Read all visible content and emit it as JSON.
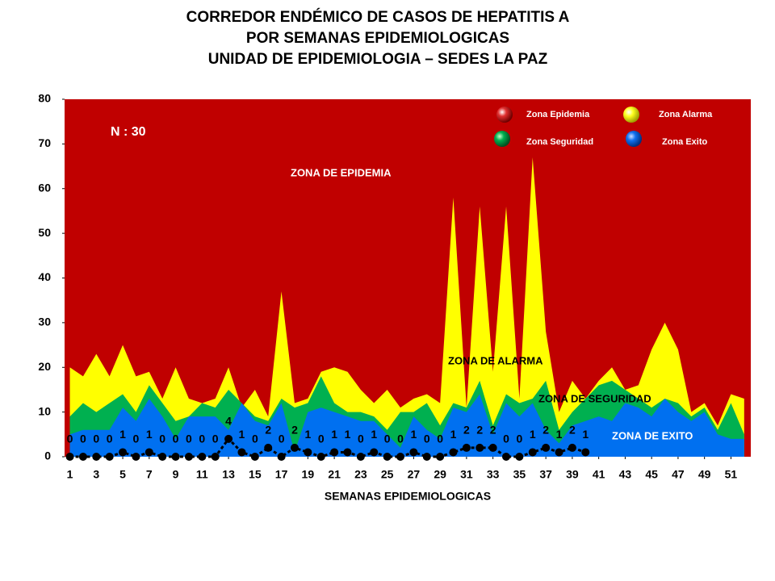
{
  "chart_data": {
    "type": "area",
    "title": [
      "CORREDOR ENDÉMICO DE CASOS DE HEPATITIS A",
      "POR SEMANAS EPIDEMIOLOGICAS",
      "UNIDAD DE EPIDEMIOLOGIA – SEDES LA PAZ"
    ],
    "x_label": "SEMANAS EPIDEMIOLOGICAS",
    "annotations": [
      "N : 30",
      "ZONA DE EPIDEMIA",
      "ZONA DE ALARMA",
      "ZONA DE  SEGURIDAD",
      "ZONA DE  EXITO"
    ],
    "x": [
      1,
      2,
      3,
      4,
      5,
      6,
      7,
      8,
      9,
      10,
      11,
      12,
      13,
      14,
      15,
      16,
      17,
      18,
      19,
      20,
      21,
      22,
      23,
      24,
      25,
      26,
      27,
      28,
      29,
      30,
      31,
      32,
      33,
      34,
      35,
      36,
      37,
      38,
      39,
      40,
      41,
      42,
      43,
      44,
      45,
      46,
      47,
      48,
      49,
      50,
      51,
      52
    ],
    "xlim": [
      0.6,
      52.5
    ],
    "xticks": [
      1,
      3,
      5,
      7,
      9,
      11,
      13,
      15,
      17,
      19,
      21,
      23,
      25,
      27,
      29,
      31,
      33,
      35,
      37,
      39,
      41,
      43,
      45,
      47,
      49,
      51
    ],
    "ylim": [
      0,
      80
    ],
    "yticks": [
      0,
      10,
      20,
      30,
      40,
      50,
      60,
      70,
      80
    ],
    "grid": false,
    "series": [
      {
        "name": "Zona Epidemia",
        "color": "#c00000"
      },
      {
        "name": "Zona Alarma",
        "color": "#ffff00",
        "values": [
          20,
          18,
          23,
          18,
          25,
          18,
          19,
          13,
          20,
          13,
          12,
          13,
          20,
          11,
          15,
          9,
          37,
          12,
          13,
          19,
          20,
          19,
          15,
          12,
          15,
          11,
          13,
          14,
          12,
          58,
          11,
          56,
          19,
          56,
          13,
          67,
          28,
          10,
          17,
          13,
          17,
          20,
          15,
          16,
          24,
          30,
          24,
          10,
          12,
          7,
          14,
          13
        ]
      },
      {
        "name": "Zona Seguridad",
        "color": "#00b050",
        "values": [
          9,
          12,
          10,
          12,
          14,
          10,
          16,
          12,
          8,
          9,
          12,
          11,
          15,
          12,
          9,
          8,
          13,
          11,
          12,
          18,
          12,
          10,
          10,
          9,
          6,
          10,
          10,
          12,
          7,
          12,
          11,
          17,
          7,
          14,
          12,
          13,
          17,
          6,
          10,
          13,
          16,
          17,
          15,
          13,
          11,
          13,
          12,
          9,
          11,
          6,
          12,
          5
        ]
      },
      {
        "name": "Zona Exito",
        "color": "#0070f0",
        "values": [
          5,
          6,
          6,
          6,
          11,
          8,
          13,
          9,
          4,
          9,
          9,
          9,
          6,
          12,
          8,
          7,
          12,
          1,
          10,
          11,
          10,
          9,
          8,
          8,
          5,
          2,
          9,
          6,
          4,
          11,
          10,
          14,
          5,
          12,
          9,
          12,
          6,
          3,
          7,
          8,
          9,
          8,
          12,
          11,
          9,
          13,
          10,
          8,
          10,
          5,
          4,
          4
        ]
      }
    ],
    "cases": {
      "color": "#000000",
      "values": [
        0,
        0,
        0,
        0,
        1,
        0,
        1,
        0,
        0,
        0,
        0,
        0,
        4,
        1,
        0,
        2,
        0,
        2,
        1,
        0,
        1,
        1,
        0,
        1,
        0,
        0,
        1,
        0,
        0,
        1,
        2,
        2,
        2,
        0,
        0,
        1,
        2,
        1,
        2,
        1
      ]
    }
  }
}
